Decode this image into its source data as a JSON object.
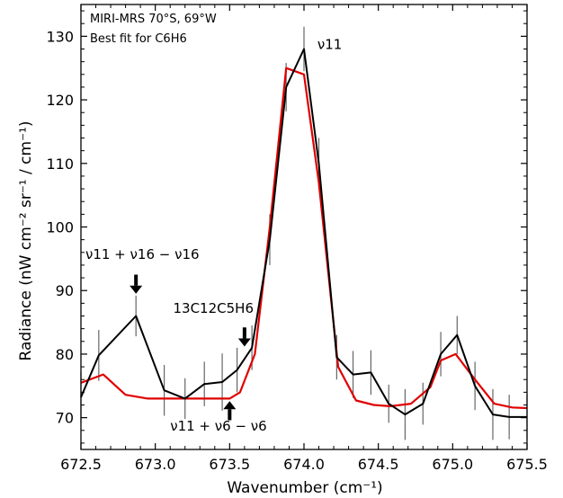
{
  "chart_data": {
    "type": "line",
    "xlabel": "Wavenumber (cm⁻¹)",
    "ylabel": "Radiance (nW cm⁻² sr⁻¹ / cm⁻¹)",
    "xlim": [
      672.5,
      675.5
    ],
    "ylim": [
      65,
      135
    ],
    "xticks": [
      672.5,
      673.0,
      673.5,
      674.0,
      674.5,
      675.0,
      675.5
    ],
    "xtick_labels": [
      "672.5",
      "673.0",
      "673.5",
      "674.0",
      "674.5",
      "675.0",
      "675.5"
    ],
    "yticks": [
      70,
      80,
      90,
      100,
      110,
      120,
      130
    ],
    "ytick_labels": [
      "70",
      "80",
      "90",
      "100",
      "110",
      "120",
      "130"
    ],
    "grid": false,
    "legend_position": "top-left",
    "series": [
      {
        "name": "MIRI-MRS 70°S, 69°W",
        "color": "#000000",
        "x": [
          672.5,
          672.62,
          672.87,
          673.06,
          673.2,
          673.33,
          673.45,
          673.55,
          673.65,
          673.77,
          673.88,
          674.0,
          674.1,
          674.22,
          674.33,
          674.45,
          674.57,
          674.68,
          674.8,
          674.92,
          675.03,
          675.15,
          675.27,
          675.38,
          675.5
        ],
        "y": [
          73.2,
          79.8,
          86.0,
          74.3,
          73.0,
          75.3,
          75.6,
          77.5,
          81.0,
          98.0,
          122.0,
          128.0,
          110.0,
          79.5,
          76.8,
          77.1,
          72.2,
          70.5,
          72.2,
          80.0,
          83.0,
          75.0,
          70.5,
          70.1,
          70.1
        ],
        "error": [
          4.0,
          4.0,
          3.2,
          4.0,
          3.2,
          3.5,
          4.5,
          3.5,
          3.5,
          4.0,
          3.8,
          3.5,
          4.0,
          3.5,
          3.7,
          3.5,
          3.0,
          4.0,
          3.3,
          3.5,
          3.0,
          3.8,
          4.0,
          3.5,
          3.5
        ]
      },
      {
        "name": "Best fit for C6H6",
        "color": "#e00000",
        "x": [
          672.5,
          672.65,
          672.8,
          672.95,
          673.1,
          673.25,
          673.4,
          673.5,
          673.57,
          673.67,
          673.77,
          673.88,
          674.0,
          674.1,
          674.23,
          674.35,
          674.47,
          674.58,
          674.72,
          674.85,
          674.92,
          675.02,
          675.15,
          675.28,
          675.4,
          675.5
        ],
        "y": [
          75.5,
          76.8,
          73.6,
          73.0,
          73.0,
          73.0,
          73.0,
          73.0,
          74.0,
          80.0,
          100.0,
          125.0,
          124.0,
          107.0,
          78.0,
          72.7,
          72.0,
          71.8,
          72.2,
          74.8,
          79.0,
          80.0,
          76.0,
          72.2,
          71.6,
          71.5
        ]
      }
    ],
    "legend": [
      {
        "text": "MIRI-MRS 70°S, 69°W",
        "color": "#000000"
      },
      {
        "text": "Best fit for C6H6",
        "color": "#e00000"
      }
    ],
    "annotations": [
      {
        "id": "nu11",
        "text": "ν11",
        "x": 674.09,
        "y": 128.0
      },
      {
        "id": "nu11-nu16",
        "text": "ν11 + ν16 − ν16",
        "x": 672.53,
        "y": 95.0,
        "arrow": {
          "x": 672.87,
          "from": 92.5,
          "to": 89.5,
          "direction": "down"
        }
      },
      {
        "id": "c13",
        "text": "13C12C5H6",
        "x": 673.12,
        "y": 86.5,
        "arrow": {
          "x": 673.6,
          "from": 84.2,
          "to": 81.2,
          "direction": "down"
        }
      },
      {
        "id": "nu11-nu6",
        "text": "ν11 + ν6 − ν6",
        "x": 673.1,
        "y": 68.0,
        "arrow": {
          "x": 673.5,
          "from": 69.6,
          "to": 72.6,
          "direction": "up"
        }
      }
    ]
  }
}
